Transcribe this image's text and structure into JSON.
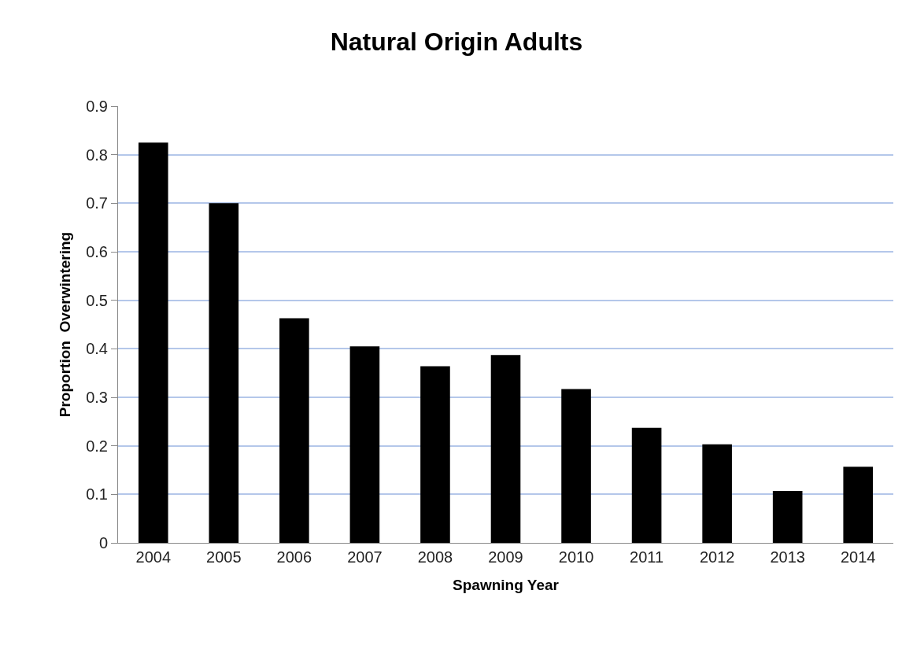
{
  "chart_data": {
    "type": "bar",
    "title": "Natural Origin Adults",
    "xlabel": "Spawning Year",
    "ylabel": "Proportion  Overwintering",
    "categories": [
      "2004",
      "2005",
      "2006",
      "2007",
      "2008",
      "2009",
      "2010",
      "2011",
      "2012",
      "2013",
      "2014"
    ],
    "values": [
      0.825,
      0.7,
      0.463,
      0.405,
      0.364,
      0.387,
      0.317,
      0.237,
      0.203,
      0.107,
      0.157
    ],
    "color": "#000000",
    "ylim": [
      0,
      0.9
    ],
    "yticks": [
      0,
      0.1,
      0.2,
      0.3,
      0.4,
      0.5,
      0.6,
      0.7,
      0.8,
      0.9
    ],
    "grid": "y"
  }
}
